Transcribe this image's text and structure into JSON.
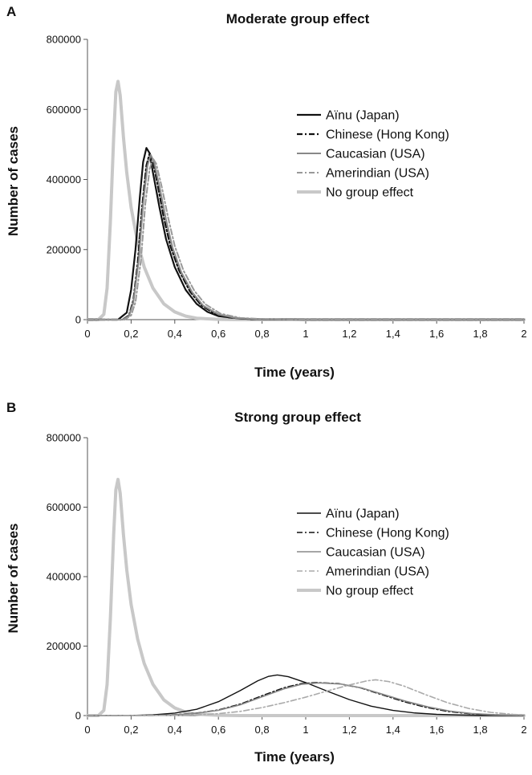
{
  "chart_data": [
    {
      "panel_label": "A",
      "type": "line",
      "title": "Moderate group effect",
      "xlabel": "Time (years)",
      "ylabel": "Number of cases",
      "xlim": [
        0,
        2
      ],
      "ylim": [
        0,
        800000
      ],
      "x_ticks": [
        "0",
        "0,2",
        "0,4",
        "0,6",
        "0,8",
        "1",
        "1,2",
        "1,4",
        "1,6",
        "1,8",
        "2"
      ],
      "y_ticks": [
        "0",
        "200000",
        "400000",
        "600000",
        "800000"
      ],
      "grid": false,
      "legend_position": "top-right",
      "series": [
        {
          "name": "Aïnu (Japan)",
          "color": "#111111",
          "dash": "solid",
          "width": 2.2,
          "points": [
            [
              0,
              0
            ],
            [
              0.14,
              0
            ],
            [
              0.18,
              20000
            ],
            [
              0.2,
              85000
            ],
            [
              0.22,
              200000
            ],
            [
              0.24,
              350000
            ],
            [
              0.255,
              450000
            ],
            [
              0.27,
              490000
            ],
            [
              0.285,
              475000
            ],
            [
              0.3,
              420000
            ],
            [
              0.33,
              320000
            ],
            [
              0.36,
              230000
            ],
            [
              0.4,
              150000
            ],
            [
              0.45,
              85000
            ],
            [
              0.5,
              45000
            ],
            [
              0.55,
              22000
            ],
            [
              0.6,
              10000
            ],
            [
              0.7,
              3000
            ],
            [
              0.8,
              800
            ],
            [
              1.0,
              0
            ],
            [
              2.0,
              0
            ]
          ]
        },
        {
          "name": "Chinese (Hong Kong)",
          "color": "#111111",
          "dash": "7,3,2,3",
          "width": 2.2,
          "points": [
            [
              0,
              0
            ],
            [
              0.16,
              0
            ],
            [
              0.19,
              12000
            ],
            [
              0.21,
              55000
            ],
            [
              0.23,
              160000
            ],
            [
              0.25,
              320000
            ],
            [
              0.27,
              440000
            ],
            [
              0.285,
              475000
            ],
            [
              0.3,
              450000
            ],
            [
              0.32,
              390000
            ],
            [
              0.35,
              290000
            ],
            [
              0.38,
              210000
            ],
            [
              0.42,
              140000
            ],
            [
              0.47,
              80000
            ],
            [
              0.52,
              42000
            ],
            [
              0.58,
              18000
            ],
            [
              0.65,
              6000
            ],
            [
              0.75,
              1500
            ],
            [
              1.0,
              0
            ],
            [
              2.0,
              0
            ]
          ]
        },
        {
          "name": "Caucasian (USA)",
          "color": "#888888",
          "dash": "solid",
          "width": 2.0,
          "points": [
            [
              0,
              0
            ],
            [
              0.16,
              0
            ],
            [
              0.19,
              10000
            ],
            [
              0.21,
              48000
            ],
            [
              0.235,
              170000
            ],
            [
              0.255,
              330000
            ],
            [
              0.275,
              440000
            ],
            [
              0.29,
              470000
            ],
            [
              0.305,
              450000
            ],
            [
              0.33,
              380000
            ],
            [
              0.36,
              285000
            ],
            [
              0.39,
              205000
            ],
            [
              0.43,
              135000
            ],
            [
              0.48,
              78000
            ],
            [
              0.53,
              40000
            ],
            [
              0.6,
              15000
            ],
            [
              0.68,
              4500
            ],
            [
              0.8,
              900
            ],
            [
              1.0,
              0
            ],
            [
              2.0,
              0
            ]
          ]
        },
        {
          "name": "Amerindian (USA)",
          "color": "#999999",
          "dash": "7,3,2,3",
          "width": 2.0,
          "points": [
            [
              0,
              0
            ],
            [
              0.17,
              0
            ],
            [
              0.2,
              12000
            ],
            [
              0.22,
              50000
            ],
            [
              0.245,
              170000
            ],
            [
              0.265,
              330000
            ],
            [
              0.285,
              430000
            ],
            [
              0.3,
              460000
            ],
            [
              0.315,
              445000
            ],
            [
              0.34,
              380000
            ],
            [
              0.37,
              290000
            ],
            [
              0.4,
              210000
            ],
            [
              0.44,
              140000
            ],
            [
              0.49,
              82000
            ],
            [
              0.54,
              44000
            ],
            [
              0.61,
              17000
            ],
            [
              0.7,
              5000
            ],
            [
              0.82,
              1000
            ],
            [
              1.0,
              0
            ],
            [
              2.0,
              0
            ]
          ]
        },
        {
          "name": "No group effect",
          "color": "#c8c8c8",
          "dash": "solid",
          "width": 4.0,
          "points": [
            [
              0,
              0
            ],
            [
              0.05,
              0
            ],
            [
              0.075,
              15000
            ],
            [
              0.09,
              90000
            ],
            [
              0.105,
              280000
            ],
            [
              0.12,
              520000
            ],
            [
              0.13,
              650000
            ],
            [
              0.14,
              680000
            ],
            [
              0.15,
              640000
            ],
            [
              0.165,
              520000
            ],
            [
              0.18,
              420000
            ],
            [
              0.2,
              320000
            ],
            [
              0.23,
              220000
            ],
            [
              0.26,
              150000
            ],
            [
              0.3,
              90000
            ],
            [
              0.35,
              45000
            ],
            [
              0.4,
              22000
            ],
            [
              0.45,
              10000
            ],
            [
              0.5,
              4000
            ],
            [
              0.6,
              800
            ],
            [
              0.7,
              0
            ],
            [
              2.0,
              0
            ]
          ]
        }
      ]
    },
    {
      "panel_label": "B",
      "type": "line",
      "title": "Strong group effect",
      "xlabel": "Time (years)",
      "ylabel": "Number of cases",
      "xlim": [
        0,
        2
      ],
      "ylim": [
        0,
        800000
      ],
      "x_ticks": [
        "0",
        "0,2",
        "0,4",
        "0,6",
        "0,8",
        "1",
        "1,2",
        "1,4",
        "1,6",
        "1,8",
        "2"
      ],
      "y_ticks": [
        "0",
        "200000",
        "400000",
        "600000",
        "800000"
      ],
      "grid": false,
      "legend_position": "right",
      "series": [
        {
          "name": "Aïnu (Japan)",
          "color": "#111111",
          "dash": "solid",
          "width": 1.4,
          "points": [
            [
              0,
              0
            ],
            [
              0.2,
              500
            ],
            [
              0.3,
              2000
            ],
            [
              0.4,
              7000
            ],
            [
              0.5,
              18000
            ],
            [
              0.6,
              40000
            ],
            [
              0.7,
              72000
            ],
            [
              0.78,
              100000
            ],
            [
              0.83,
              113000
            ],
            [
              0.87,
              117000
            ],
            [
              0.92,
              112000
            ],
            [
              1.0,
              95000
            ],
            [
              1.1,
              70000
            ],
            [
              1.2,
              46000
            ],
            [
              1.3,
              27000
            ],
            [
              1.4,
              15000
            ],
            [
              1.5,
              7500
            ],
            [
              1.6,
              3500
            ],
            [
              1.7,
              1500
            ],
            [
              1.8,
              600
            ],
            [
              2.0,
              0
            ]
          ]
        },
        {
          "name": "Chinese (Hong Kong)",
          "color": "#111111",
          "dash": "7,3,2,3",
          "width": 1.6,
          "points": [
            [
              0,
              0
            ],
            [
              0.3,
              500
            ],
            [
              0.4,
              2500
            ],
            [
              0.5,
              7000
            ],
            [
              0.6,
              16000
            ],
            [
              0.7,
              33000
            ],
            [
              0.8,
              57000
            ],
            [
              0.9,
              80000
            ],
            [
              0.98,
              92000
            ],
            [
              1.05,
              95000
            ],
            [
              1.15,
              92000
            ],
            [
              1.25,
              80000
            ],
            [
              1.35,
              60000
            ],
            [
              1.45,
              40000
            ],
            [
              1.55,
              24000
            ],
            [
              1.65,
              12000
            ],
            [
              1.75,
              5500
            ],
            [
              1.85,
              2200
            ],
            [
              2.0,
              500
            ]
          ]
        },
        {
          "name": "Caucasian (USA)",
          "color": "#888888",
          "dash": "solid",
          "width": 1.6,
          "points": [
            [
              0,
              0
            ],
            [
              0.3,
              500
            ],
            [
              0.4,
              2200
            ],
            [
              0.5,
              6500
            ],
            [
              0.6,
              15000
            ],
            [
              0.7,
              31000
            ],
            [
              0.8,
              54000
            ],
            [
              0.9,
              77000
            ],
            [
              0.98,
              90000
            ],
            [
              1.06,
              94000
            ],
            [
              1.16,
              91000
            ],
            [
              1.26,
              79000
            ],
            [
              1.36,
              60000
            ],
            [
              1.46,
              41000
            ],
            [
              1.56,
              25000
            ],
            [
              1.66,
              13000
            ],
            [
              1.76,
              6000
            ],
            [
              1.86,
              2400
            ],
            [
              2.0,
              600
            ]
          ]
        },
        {
          "name": "Amerindian (USA)",
          "color": "#aaaaaa",
          "dash": "7,3,2,3",
          "width": 1.6,
          "points": [
            [
              0,
              0
            ],
            [
              0.4,
              500
            ],
            [
              0.5,
              2000
            ],
            [
              0.6,
              5500
            ],
            [
              0.7,
              12000
            ],
            [
              0.8,
              23000
            ],
            [
              0.9,
              37000
            ],
            [
              1.0,
              53000
            ],
            [
              1.1,
              71000
            ],
            [
              1.2,
              88000
            ],
            [
              1.28,
              100000
            ],
            [
              1.32,
              103000
            ],
            [
              1.38,
              98000
            ],
            [
              1.45,
              85000
            ],
            [
              1.55,
              60000
            ],
            [
              1.65,
              37000
            ],
            [
              1.75,
              20000
            ],
            [
              1.85,
              9000
            ],
            [
              1.95,
              3500
            ],
            [
              2.0,
              2000
            ]
          ]
        },
        {
          "name": "No group effect",
          "color": "#c8c8c8",
          "dash": "solid",
          "width": 4.0,
          "points": [
            [
              0,
              0
            ],
            [
              0.05,
              0
            ],
            [
              0.075,
              15000
            ],
            [
              0.09,
              90000
            ],
            [
              0.105,
              280000
            ],
            [
              0.12,
              520000
            ],
            [
              0.13,
              650000
            ],
            [
              0.14,
              680000
            ],
            [
              0.15,
              640000
            ],
            [
              0.165,
              520000
            ],
            [
              0.18,
              420000
            ],
            [
              0.2,
              320000
            ],
            [
              0.23,
              220000
            ],
            [
              0.26,
              150000
            ],
            [
              0.3,
              90000
            ],
            [
              0.35,
              45000
            ],
            [
              0.4,
              22000
            ],
            [
              0.45,
              10000
            ],
            [
              0.5,
              4000
            ],
            [
              0.6,
              800
            ],
            [
              0.7,
              0
            ],
            [
              2.0,
              0
            ]
          ]
        }
      ]
    }
  ]
}
